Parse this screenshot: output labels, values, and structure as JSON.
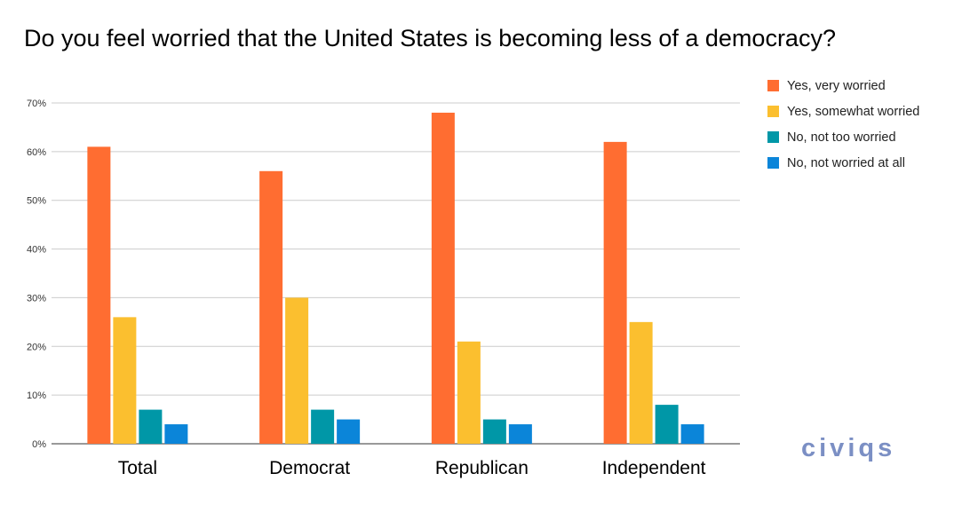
{
  "chart_data": {
    "type": "bar",
    "title": "Do you feel worried that the United States is becoming less of a democracy?",
    "categories": [
      "Total",
      "Democrat",
      "Republican",
      "Independent"
    ],
    "series": [
      {
        "name": "Yes, very worried",
        "color": "#ff6d31",
        "values": [
          61,
          56,
          68,
          62
        ]
      },
      {
        "name": "Yes, somewhat worried",
        "color": "#fbbf2f",
        "values": [
          26,
          30,
          21,
          25
        ]
      },
      {
        "name": "No, not too worried",
        "color": "#0097a7",
        "values": [
          7,
          7,
          5,
          8
        ]
      },
      {
        "name": "No, not worried at all",
        "color": "#0b85d9",
        "values": [
          4,
          5,
          4,
          4
        ]
      }
    ],
    "ylim": [
      0,
      70
    ],
    "yticks": [
      "0%",
      "10%",
      "20%",
      "30%",
      "40%",
      "50%",
      "60%",
      "70%"
    ],
    "xlabel": "",
    "ylabel": "",
    "grid": true,
    "legend_position": "right"
  },
  "logo": {
    "text": "civiqs",
    "color": "#7b8fc4"
  }
}
